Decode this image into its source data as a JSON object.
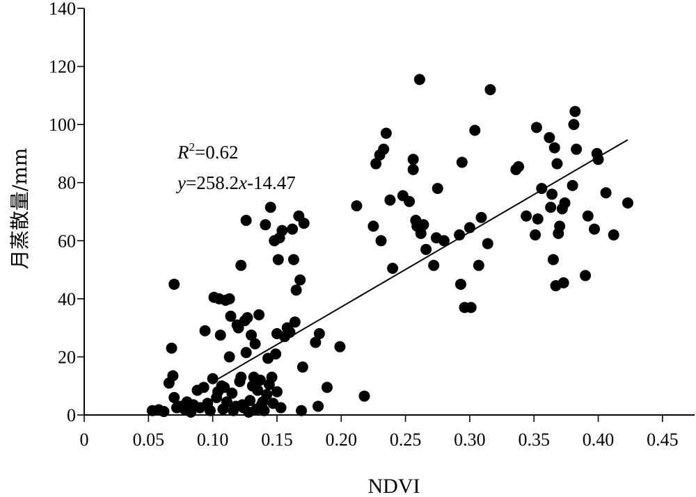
{
  "chart_data": {
    "type": "scatter",
    "xlabel": "NDVI",
    "ylabel": "月蒸散量/mm",
    "xlim": [
      0,
      0.475
    ],
    "ylim": [
      0,
      140
    ],
    "xticks": [
      0,
      0.05,
      0.1,
      0.15,
      0.2,
      0.25,
      0.3,
      0.35,
      0.4,
      0.45
    ],
    "xtick_labels": [
      "0",
      "0.05",
      "0.10",
      "0.15",
      "0.20",
      "0.25",
      "0.30",
      "0.35",
      "0.40",
      "0.45"
    ],
    "yticks": [
      0,
      20,
      40,
      60,
      80,
      100,
      120,
      140
    ],
    "ytick_labels": [
      "0",
      "20",
      "40",
      "60",
      "80",
      "100",
      "120",
      "140"
    ],
    "grid": false,
    "annotations": {
      "r2_symbol": "R",
      "r2_power": "2",
      "r2_value": "=0.62",
      "eq_y": "y",
      "eq_mid": "=258.2",
      "eq_x": "x",
      "eq_end": "-14.47"
    },
    "fit_line": {
      "slope": 258.2,
      "intercept": -14.47,
      "x_range": [
        0.1,
        0.423
      ]
    },
    "points": [
      [
        0.053,
        1.5
      ],
      [
        0.058,
        1.8
      ],
      [
        0.062,
        1.2
      ],
      [
        0.066,
        11.0
      ],
      [
        0.068,
        23.0
      ],
      [
        0.069,
        13.5
      ],
      [
        0.07,
        6.0
      ],
      [
        0.07,
        45.0
      ],
      [
        0.072,
        2.5
      ],
      [
        0.075,
        3.0
      ],
      [
        0.078,
        2.0
      ],
      [
        0.08,
        4.5
      ],
      [
        0.083,
        1.0
      ],
      [
        0.085,
        3.5
      ],
      [
        0.088,
        8.5
      ],
      [
        0.09,
        2.5
      ],
      [
        0.093,
        9.5
      ],
      [
        0.094,
        29.0
      ],
      [
        0.096,
        4.0
      ],
      [
        0.098,
        1.5
      ],
      [
        0.1,
        12.5
      ],
      [
        0.101,
        40.5
      ],
      [
        0.103,
        6.0
      ],
      [
        0.104,
        8.0
      ],
      [
        0.105,
        40.0
      ],
      [
        0.106,
        27.5
      ],
      [
        0.107,
        10.0
      ],
      [
        0.108,
        2.0
      ],
      [
        0.109,
        9.5
      ],
      [
        0.11,
        39.5
      ],
      [
        0.111,
        4.5
      ],
      [
        0.113,
        40.0
      ],
      [
        0.113,
        20.0
      ],
      [
        0.114,
        34.0
      ],
      [
        0.115,
        7.5
      ],
      [
        0.116,
        1.5
      ],
      [
        0.118,
        3.0
      ],
      [
        0.119,
        31.0
      ],
      [
        0.12,
        30.0
      ],
      [
        0.121,
        11.5
      ],
      [
        0.122,
        51.5
      ],
      [
        0.122,
        13.0
      ],
      [
        0.123,
        3.5
      ],
      [
        0.124,
        2.5
      ],
      [
        0.125,
        32.5
      ],
      [
        0.126,
        21.5
      ],
      [
        0.126,
        67.0
      ],
      [
        0.127,
        33.5
      ],
      [
        0.128,
        1.0
      ],
      [
        0.129,
        5.0
      ],
      [
        0.13,
        27.5
      ],
      [
        0.131,
        10.0
      ],
      [
        0.132,
        13.0
      ],
      [
        0.133,
        24.5
      ],
      [
        0.134,
        2.0
      ],
      [
        0.135,
        8.5
      ],
      [
        0.136,
        34.5
      ],
      [
        0.137,
        12.0
      ],
      [
        0.138,
        3.5
      ],
      [
        0.139,
        4.5
      ],
      [
        0.14,
        1.5
      ],
      [
        0.141,
        65.5
      ],
      [
        0.142,
        7.0
      ],
      [
        0.143,
        19.5
      ],
      [
        0.144,
        10.5
      ],
      [
        0.145,
        71.5
      ],
      [
        0.146,
        13.0
      ],
      [
        0.147,
        4.0
      ],
      [
        0.148,
        60.0
      ],
      [
        0.149,
        21.0
      ],
      [
        0.15,
        8.0
      ],
      [
        0.15,
        28.0
      ],
      [
        0.151,
        53.5
      ],
      [
        0.152,
        61.0
      ],
      [
        0.153,
        2.5
      ],
      [
        0.154,
        63.5
      ],
      [
        0.156,
        27.0
      ],
      [
        0.158,
        30.0
      ],
      [
        0.16,
        28.5
      ],
      [
        0.162,
        64.0
      ],
      [
        0.163,
        53.5
      ],
      [
        0.164,
        32.0
      ],
      [
        0.165,
        43.0
      ],
      [
        0.167,
        68.5
      ],
      [
        0.168,
        46.5
      ],
      [
        0.169,
        1.5
      ],
      [
        0.17,
        16.5
      ],
      [
        0.171,
        66.0
      ],
      [
        0.18,
        25.0
      ],
      [
        0.182,
        3.0
      ],
      [
        0.183,
        28.0
      ],
      [
        0.189,
        9.5
      ],
      [
        0.199,
        23.5
      ],
      [
        0.212,
        72.0
      ],
      [
        0.218,
        6.5
      ],
      [
        0.225,
        65.0
      ],
      [
        0.227,
        86.5
      ],
      [
        0.23,
        89.5
      ],
      [
        0.231,
        60.0
      ],
      [
        0.233,
        91.5
      ],
      [
        0.235,
        97.0
      ],
      [
        0.238,
        74.0
      ],
      [
        0.24,
        50.5
      ],
      [
        0.248,
        75.5
      ],
      [
        0.253,
        73.5
      ],
      [
        0.256,
        88.0
      ],
      [
        0.256,
        84.5
      ],
      [
        0.258,
        67.0
      ],
      [
        0.259,
        65.0
      ],
      [
        0.261,
        115.5
      ],
      [
        0.262,
        62.5
      ],
      [
        0.264,
        65.5
      ],
      [
        0.266,
        57.0
      ],
      [
        0.272,
        51.5
      ],
      [
        0.274,
        61.0
      ],
      [
        0.275,
        78.0
      ],
      [
        0.28,
        60.0
      ],
      [
        0.292,
        62.0
      ],
      [
        0.293,
        45.0
      ],
      [
        0.294,
        87.0
      ],
      [
        0.296,
        37.0
      ],
      [
        0.3,
        64.5
      ],
      [
        0.301,
        37.0
      ],
      [
        0.304,
        98.0
      ],
      [
        0.307,
        51.5
      ],
      [
        0.309,
        68.0
      ],
      [
        0.314,
        59.0
      ],
      [
        0.316,
        112.0
      ],
      [
        0.336,
        84.5
      ],
      [
        0.338,
        85.5
      ],
      [
        0.344,
        68.5
      ],
      [
        0.351,
        62.0
      ],
      [
        0.352,
        99.0
      ],
      [
        0.353,
        67.5
      ],
      [
        0.356,
        78.0
      ],
      [
        0.362,
        95.5
      ],
      [
        0.363,
        71.5
      ],
      [
        0.364,
        76.0
      ],
      [
        0.365,
        53.5
      ],
      [
        0.366,
        92.0
      ],
      [
        0.367,
        44.5
      ],
      [
        0.368,
        86.5
      ],
      [
        0.369,
        62.5
      ],
      [
        0.37,
        65.0
      ],
      [
        0.372,
        71.0
      ],
      [
        0.373,
        45.5
      ],
      [
        0.374,
        73.0
      ],
      [
        0.38,
        79.0
      ],
      [
        0.381,
        100.0
      ],
      [
        0.382,
        104.5
      ],
      [
        0.383,
        91.5
      ],
      [
        0.39,
        48.0
      ],
      [
        0.392,
        68.5
      ],
      [
        0.397,
        64.0
      ],
      [
        0.399,
        90.0
      ],
      [
        0.4,
        88.0
      ],
      [
        0.406,
        76.5
      ],
      [
        0.412,
        62.0
      ],
      [
        0.423,
        73.0
      ]
    ]
  }
}
